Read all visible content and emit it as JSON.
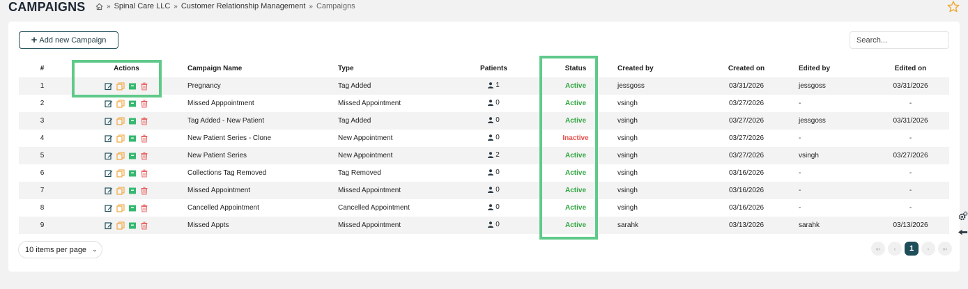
{
  "header": {
    "title": "CAMPAIGNS",
    "breadcrumb": [
      "Spinal Care LLC",
      "Customer Relationship Management",
      "Campaigns"
    ],
    "breadcrumb_separator": "»"
  },
  "toolbar": {
    "add_label": "Add new Campaign",
    "search_placeholder": "Search..."
  },
  "table": {
    "columns": [
      "#",
      "Actions",
      "Campaign Name",
      "Type",
      "Patients",
      "Status",
      "Created by",
      "Created on",
      "Edited by",
      "Edited on"
    ],
    "rows": [
      {
        "num": "1",
        "name": "Pregnancy",
        "type": "Tag Added",
        "patients": "1",
        "status": "Active",
        "created_by": "jessgoss",
        "created_on": "03/31/2026",
        "edited_by": "jessgoss",
        "edited_on": "03/31/2026"
      },
      {
        "num": "2",
        "name": "Missed Apppointment",
        "type": "Missed Appointment",
        "patients": "0",
        "status": "Active",
        "created_by": "vsingh",
        "created_on": "03/27/2026",
        "edited_by": "-",
        "edited_on": "-"
      },
      {
        "num": "3",
        "name": "Tag Added - New Patient",
        "type": "Tag Added",
        "patients": "0",
        "status": "Active",
        "created_by": "vsingh",
        "created_on": "03/27/2026",
        "edited_by": "jessgoss",
        "edited_on": "03/31/2026"
      },
      {
        "num": "4",
        "name": "New Patient Series - Clone",
        "type": "New Appointment",
        "patients": "0",
        "status": "Inactive",
        "created_by": "vsingh",
        "created_on": "03/27/2026",
        "edited_by": "-",
        "edited_on": "-"
      },
      {
        "num": "5",
        "name": "New Patient Series",
        "type": "New Appointment",
        "patients": "2",
        "status": "Active",
        "created_by": "vsingh",
        "created_on": "03/27/2026",
        "edited_by": "vsingh",
        "edited_on": "03/27/2026"
      },
      {
        "num": "6",
        "name": "Collections Tag Removed",
        "type": "Tag Removed",
        "patients": "0",
        "status": "Active",
        "created_by": "vsingh",
        "created_on": "03/16/2026",
        "edited_by": "-",
        "edited_on": "-"
      },
      {
        "num": "7",
        "name": "Missed Appointment",
        "type": "Missed Appointment",
        "patients": "0",
        "status": "Active",
        "created_by": "vsingh",
        "created_on": "03/16/2026",
        "edited_by": "-",
        "edited_on": "-"
      },
      {
        "num": "8",
        "name": "Cancelled Appointment",
        "type": "Cancelled Appointment",
        "patients": "0",
        "status": "Active",
        "created_by": "vsingh",
        "created_on": "03/16/2026",
        "edited_by": "-",
        "edited_on": "-"
      },
      {
        "num": "9",
        "name": "Missed Appts",
        "type": "Missed Appointment",
        "patients": "0",
        "status": "Active",
        "created_by": "sarahk",
        "created_on": "03/13/2026",
        "edited_by": "sarahk",
        "edited_on": "03/13/2026"
      }
    ],
    "action_icons": [
      "edit-icon",
      "copy-icon",
      "archive-icon",
      "trash-icon"
    ]
  },
  "footer": {
    "per_page_label": "10 items per page",
    "pager": {
      "first": "«‹",
      "prev": "‹",
      "current": "1",
      "next": "›",
      "last": "»›"
    }
  },
  "colors": {
    "accent": "#1f4e5a",
    "active": "#35a744",
    "inactive": "#e8504d",
    "highlight": "#5fc98a",
    "edit": "#1f4e5a",
    "copy": "#f0a030",
    "archive": "#35b870",
    "trash": "#e86868"
  }
}
